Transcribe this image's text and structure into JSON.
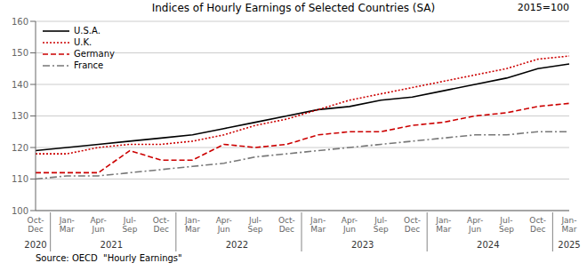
{
  "chart_data": {
    "type": "line",
    "title": "Indices of Hourly Earnings of Selected Countries (SA)",
    "subtitle": "2015=100",
    "annotations": [
      "Source: OECD  \"Hourly Earnings\""
    ],
    "categories": [
      "Oct-\nDec",
      "Jan-\nMar",
      "Apr-\nJun",
      "Jul-\nSep",
      "Oct-\nDec",
      "Jan-\nMar",
      "Apr-\nJun",
      "Jul-\nSep",
      "Oct-\nDec",
      "Jan-\nMar",
      "Apr-\nJun",
      "Jul-\nSep",
      "Oct-\nDec",
      "Jan-\nMar",
      "Apr-\nJun",
      "Jul-\nSep",
      "Oct-\nDec",
      "Jan-\nMar"
    ],
    "category_groups": [
      "2020",
      "2021",
      "2021",
      "2021",
      "2021",
      "2022",
      "2022",
      "2022",
      "2022",
      "2023",
      "2023",
      "2023",
      "2023",
      "2024",
      "2024",
      "2024",
      "2024",
      "2025"
    ],
    "ylim": [
      100,
      160
    ],
    "yticks": [
      100,
      110,
      120,
      130,
      140,
      150,
      160
    ],
    "grid": true,
    "legend": "upper left",
    "series": [
      {
        "name": "U.S.A.",
        "color": "#000000",
        "line_style": "solid",
        "values": [
          119,
          120,
          121,
          122,
          123,
          124,
          126,
          128,
          130,
          132,
          133,
          135,
          136,
          138,
          140,
          142,
          145,
          146.5
        ]
      },
      {
        "name": "U.K.",
        "color": "#cc0000",
        "line_style": "dotted",
        "values": [
          118,
          118,
          120,
          121,
          121,
          122,
          124,
          127,
          129,
          132,
          135,
          137,
          139,
          141,
          143,
          145,
          148,
          149
        ]
      },
      {
        "name": "Germany",
        "color": "#cc0000",
        "line_style": "dashed",
        "values": [
          112,
          112,
          112,
          119,
          116,
          116,
          121,
          120,
          121,
          124,
          125,
          125,
          127,
          128,
          130,
          131,
          133,
          134
        ]
      },
      {
        "name": "France",
        "color": "#777777",
        "line_style": "dashdot",
        "values": [
          110,
          111,
          111,
          112,
          113,
          114,
          115,
          117,
          118,
          119,
          120,
          121,
          122,
          123,
          124,
          124,
          125,
          125
        ]
      }
    ]
  }
}
